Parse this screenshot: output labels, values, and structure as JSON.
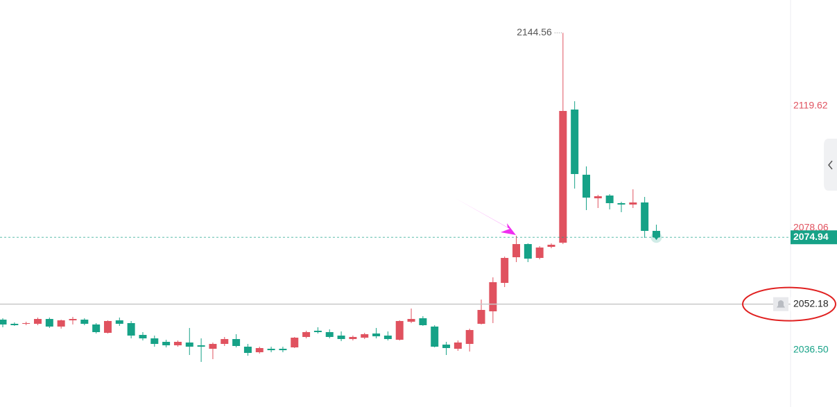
{
  "chart_data": {
    "type": "candlestick",
    "up_color": "#e0525f",
    "down_color": "#16a287",
    "ylim": [
      2017.15,
      2155.74
    ],
    "yticks": [
      2119.62,
      2078.06,
      {
        "value": 2036.5,
        "label": "2036.50"
      }
    ],
    "alert_line": 2052.18,
    "open": [
      2046.9,
      2045.48,
      2045.48,
      2045.48,
      2047.13,
      2044.54,
      2046.66,
      2046.9,
      2045.25,
      2042.41,
      2046.66,
      2045.72,
      2041.7,
      2040.52,
      2039.34,
      2038.16,
      2039.11,
      2038.16,
      2036.98,
      2038.63,
      2040.29,
      2037.69,
      2035.8,
      2036.98,
      2036.98,
      2037.45,
      2041.0,
      2043.12,
      2042.65,
      2041.47,
      2040.29,
      2040.76,
      2042.18,
      2041.47,
      2040.05,
      2046.19,
      2047.37,
      2044.54,
      2038.4,
      2036.98,
      2038.63,
      2045.48,
      2049.73,
      2059.41,
      2068.15,
      2072.63,
      2067.91,
      2071.69,
      2073.1,
      2118.44,
      2096.24,
      2088.22,
      2089.16,
      2086.56,
      2086.09,
      2086.8,
      2077.12
    ],
    "high": [
      2047.37,
      2045.95,
      2046.19,
      2047.61,
      2047.61,
      2046.9,
      2047.84,
      2047.37,
      2045.72,
      2046.66,
      2047.61,
      2046.43,
      2042.65,
      2041.47,
      2040.05,
      2039.81,
      2044.06,
      2040.52,
      2039.11,
      2041.0,
      2041.94,
      2038.63,
      2037.69,
      2037.69,
      2037.69,
      2041.0,
      2043.12,
      2044.3,
      2043.59,
      2042.88,
      2041.47,
      2042.41,
      2044.06,
      2042.88,
      2046.66,
      2050.68,
      2048.08,
      2045.01,
      2039.34,
      2039.81,
      2043.83,
      2053.74,
      2061.3,
      2068.38,
      2075.47,
      2072.87,
      2071.92,
      2072.87,
      2144.56,
      2121.27,
      2099.08,
      2089.4,
      2089.63,
      2087.03,
      2091.28,
      2088.69,
      2079.24
    ],
    "low": [
      2044.3,
      2044.77,
      2045.01,
      2045.01,
      2044.06,
      2043.83,
      2045.25,
      2045.01,
      2042.18,
      2042.18,
      2044.77,
      2040.52,
      2039.81,
      2037.69,
      2037.45,
      2037.69,
      2034.86,
      2032.5,
      2033.44,
      2037.93,
      2037.45,
      2034.62,
      2035.33,
      2035.8,
      2035.8,
      2037.22,
      2040.52,
      2042.18,
      2040.52,
      2039.58,
      2039.81,
      2040.29,
      2040.52,
      2039.81,
      2039.81,
      2045.72,
      2044.77,
      2037.45,
      2034.86,
      2036.27,
      2036.04,
      2045.25,
      2045.72,
      2057.99,
      2066.49,
      2066.49,
      2067.44,
      2071.22,
      2072.63,
      2091.52,
      2084.2,
      2084.91,
      2084.44,
      2083.49,
      2084.91,
      2074.76,
      2074.29
    ],
    "close": [
      2045.25,
      2045.01,
      2045.72,
      2047.13,
      2044.54,
      2046.66,
      2047.13,
      2045.48,
      2042.65,
      2046.43,
      2045.48,
      2041.47,
      2040.52,
      2038.63,
      2038.16,
      2039.34,
      2037.69,
      2037.69,
      2038.63,
      2040.29,
      2037.93,
      2035.57,
      2037.22,
      2036.5,
      2036.5,
      2040.76,
      2042.65,
      2042.65,
      2041.0,
      2040.29,
      2041.0,
      2041.94,
      2041.23,
      2040.29,
      2046.43,
      2047.13,
      2045.01,
      2037.69,
      2037.22,
      2039.11,
      2043.36,
      2050.2,
      2059.65,
      2067.91,
      2072.63,
      2067.67,
      2071.45,
      2072.4,
      2117.96,
      2096.48,
      2088.45,
      2088.92,
      2086.56,
      2086.09,
      2086.8,
      2077.12,
      2074.94
    ]
  }
}
